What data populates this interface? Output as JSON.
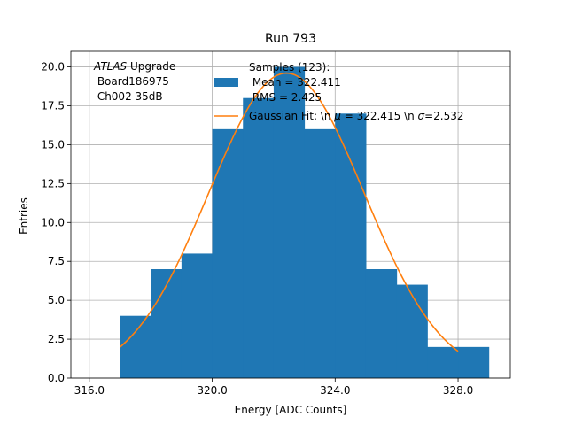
{
  "chart_data": {
    "type": "bar",
    "title": "Run 793",
    "xlabel": "Energy [ADC Counts]",
    "ylabel": "Entries",
    "xlim": [
      315.4,
      329.7
    ],
    "ylim": [
      0,
      21
    ],
    "x_ticks": [
      316,
      320,
      324,
      328
    ],
    "x_tick_labels": [
      "316.0",
      "320.0",
      "324.0",
      "328.0"
    ],
    "y_ticks": [
      0,
      2.5,
      5,
      7.5,
      10,
      12.5,
      15,
      17.5,
      20
    ],
    "y_tick_labels": [
      "0.0",
      "2.5",
      "5.0",
      "7.5",
      "10.0",
      "12.5",
      "15.0",
      "17.5",
      "20.0"
    ],
    "grid": true,
    "bins": [
      {
        "x0": 317,
        "x1": 318,
        "value": 4
      },
      {
        "x0": 318,
        "x1": 319,
        "value": 7
      },
      {
        "x0": 319,
        "x1": 320,
        "value": 8
      },
      {
        "x0": 320,
        "x1": 321,
        "value": 16
      },
      {
        "x0": 321,
        "x1": 322,
        "value": 18
      },
      {
        "x0": 322,
        "x1": 323,
        "value": 20
      },
      {
        "x0": 323,
        "x1": 324,
        "value": 16
      },
      {
        "x0": 324,
        "x1": 325,
        "value": 17
      },
      {
        "x0": 325,
        "x1": 326,
        "value": 7
      },
      {
        "x0": 326,
        "x1": 327,
        "value": 6
      },
      {
        "x0": 327,
        "x1": 328,
        "value": 2
      },
      {
        "x0": 328,
        "x1": 329,
        "value": 2
      }
    ],
    "fit": {
      "amplitude": 19.6,
      "mean": 322.415,
      "sigma": 2.532,
      "x_range": [
        317,
        328
      ]
    },
    "annotation": {
      "atlas_word": "ATLAS",
      "atlas_rest": " Upgrade",
      "line2": " Board186975",
      "line3": " Ch002 35dB"
    },
    "legend": {
      "position": "top-center",
      "histogram_lines": [
        "Samples (123):",
        " Mean = 322.411",
        " RMS = 2.425"
      ],
      "fit_label_pre": "Gaussian Fit: \\n ",
      "fit_mu": "μ",
      "fit_label_mid": " = 322.415 \\n ",
      "fit_sigma": "σ",
      "fit_label_post": "=2.532"
    },
    "colors": {
      "histogram": "#1f77b4",
      "fit": "#ff7f0e",
      "grid": "#b0b0b0"
    }
  }
}
